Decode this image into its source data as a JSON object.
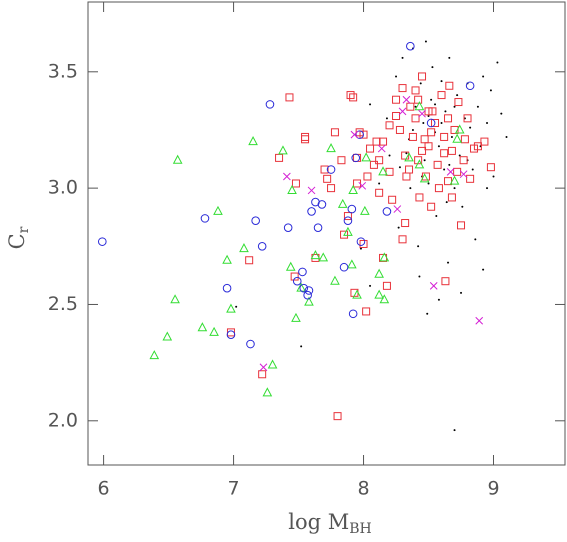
{
  "chart_data": {
    "type": "scatter",
    "xlabel": {
      "text": "log M",
      "sub": "BH"
    },
    "ylabel": {
      "text": "C",
      "sub": "r"
    },
    "xlim": [
      5.88,
      9.55
    ],
    "ylim": [
      1.81,
      3.8
    ],
    "xticks": [
      6,
      7,
      8,
      9
    ],
    "yticks": [
      {
        "value": 2.0,
        "label": "2.0"
      },
      {
        "value": 2.5,
        "label": "2.5"
      },
      {
        "value": 3.0,
        "label": "3.0"
      },
      {
        "value": 3.5,
        "label": "3.5"
      }
    ],
    "series": [
      {
        "marker": "dot",
        "color": "#000000",
        "x": [
          7.02,
          7.52,
          7.98,
          8.05,
          8.12,
          8.2,
          8.25,
          8.27,
          8.3,
          8.33,
          8.35,
          8.38,
          8.4,
          8.42,
          8.44,
          8.46,
          8.47,
          8.48,
          8.5,
          8.52,
          8.53,
          8.55,
          8.56,
          8.58,
          8.6,
          8.62,
          8.63,
          8.65,
          8.66,
          8.68,
          8.7,
          8.7,
          8.72,
          8.74,
          8.76,
          8.78,
          8.8,
          8.82,
          8.84,
          8.86,
          8.88,
          8.9,
          8.92,
          8.95,
          8.98,
          9.0,
          9.03,
          9.06,
          9.1,
          8.45,
          8.55,
          8.36,
          8.28,
          8.18,
          8.64,
          8.75,
          8.58,
          8.43,
          8.49,
          8.92,
          8.05,
          8.6,
          8.7,
          8.38,
          8.5,
          8.8,
          8.95,
          8.66
        ],
        "values": [
          2.49,
          2.32,
          2.74,
          2.58,
          3.02,
          3.14,
          3.48,
          2.83,
          3.56,
          3.15,
          3.21,
          3.6,
          3.35,
          2.75,
          3.45,
          3.28,
          3.12,
          3.63,
          3.02,
          3.38,
          3.52,
          3.24,
          2.88,
          3.18,
          3.46,
          3.08,
          3.33,
          2.68,
          3.56,
          3.22,
          1.96,
          3.0,
          3.4,
          3.14,
          2.92,
          3.3,
          3.45,
          3.26,
          3.08,
          2.78,
          3.35,
          3.18,
          2.65,
          3.28,
          3.42,
          3.05,
          3.54,
          3.32,
          3.22,
          3.05,
          3.36,
          3.0,
          3.09,
          3.3,
          2.94,
          2.55,
          2.52,
          2.62,
          2.46,
          3.48,
          3.36,
          3.28,
          3.35,
          3.25,
          3.31,
          3.12,
          3.0,
          3.1
        ]
      },
      {
        "marker": "square",
        "color": "#e8323a",
        "x": [
          6.98,
          7.12,
          7.22,
          7.35,
          7.43,
          7.48,
          7.55,
          7.55,
          7.47,
          7.63,
          7.7,
          7.75,
          7.78,
          7.8,
          7.83,
          7.88,
          7.85,
          7.9,
          7.92,
          7.93,
          7.95,
          7.95,
          7.97,
          8.0,
          8.0,
          8.02,
          8.03,
          8.05,
          8.08,
          8.1,
          8.12,
          8.15,
          8.15,
          8.18,
          8.2,
          8.22,
          8.25,
          8.28,
          8.3,
          8.3,
          8.32,
          8.32,
          8.35,
          8.36,
          8.38,
          8.4,
          8.42,
          8.42,
          8.43,
          8.45,
          8.47,
          8.48,
          8.5,
          8.5,
          8.52,
          8.53,
          8.55,
          8.57,
          8.58,
          8.6,
          8.62,
          8.63,
          8.65,
          8.65,
          8.66,
          8.68,
          8.7,
          8.72,
          8.73,
          8.75,
          8.77,
          8.78,
          8.8,
          8.82,
          8.85,
          8.88,
          8.93,
          8.98,
          8.4,
          8.25,
          8.62,
          8.33,
          8.12,
          7.72,
          8.52,
          8.45,
          8.2,
          8.68
        ],
        "values": [
          2.38,
          2.69,
          2.2,
          3.13,
          3.39,
          3.02,
          3.22,
          3.21,
          2.62,
          2.7,
          3.08,
          3.0,
          3.24,
          2.02,
          3.12,
          2.88,
          2.8,
          3.4,
          3.39,
          2.55,
          3.13,
          3.02,
          3.24,
          3.23,
          2.76,
          2.47,
          3.05,
          3.17,
          3.1,
          3.2,
          3.12,
          3.2,
          2.7,
          2.58,
          3.07,
          2.95,
          3.31,
          3.25,
          3.43,
          2.78,
          3.14,
          2.85,
          3.08,
          3.35,
          3.22,
          3.3,
          3.38,
          3.12,
          2.96,
          3.48,
          3.21,
          3.05,
          3.33,
          3.18,
          2.92,
          3.33,
          3.28,
          3.1,
          3.0,
          3.4,
          3.22,
          2.6,
          3.3,
          3.03,
          3.44,
          3.16,
          3.25,
          3.07,
          3.37,
          2.84,
          3.12,
          3.21,
          3.3,
          3.04,
          3.17,
          3.18,
          3.2,
          3.09,
          3.42,
          3.38,
          3.15,
          3.05,
          2.98,
          3.04,
          3.24,
          3.16,
          3.27,
          2.96
        ]
      },
      {
        "marker": "triangle",
        "color": "#33dd33",
        "x": [
          6.57,
          6.39,
          6.49,
          6.55,
          6.76,
          6.85,
          6.88,
          6.95,
          6.98,
          7.08,
          7.15,
          7.26,
          7.3,
          7.38,
          7.44,
          7.45,
          7.48,
          7.52,
          7.58,
          7.63,
          7.69,
          7.75,
          7.78,
          7.84,
          7.88,
          7.91,
          7.92,
          7.95,
          8.01,
          8.12,
          8.12,
          8.16,
          8.02,
          8.15,
          8.16,
          8.35,
          8.43,
          8.47,
          8.43,
          8.7,
          8.72,
          8.74
        ],
        "values": [
          3.12,
          2.28,
          2.36,
          2.52,
          2.4,
          2.38,
          2.9,
          2.69,
          2.48,
          2.74,
          3.2,
          2.12,
          2.24,
          3.16,
          2.66,
          2.99,
          2.44,
          2.57,
          2.51,
          2.71,
          2.7,
          3.17,
          2.6,
          2.93,
          2.81,
          2.67,
          2.99,
          2.54,
          2.9,
          2.63,
          2.54,
          2.7,
          3.13,
          3.07,
          2.52,
          3.13,
          3.1,
          3.04,
          3.35,
          3.03,
          3.21,
          3.25
        ]
      },
      {
        "marker": "circle",
        "color": "#2a2ad8",
        "x": [
          5.99,
          6.78,
          6.95,
          6.98,
          7.13,
          7.17,
          7.22,
          7.28,
          7.42,
          7.53,
          7.6,
          7.63,
          7.65,
          7.58,
          7.54,
          7.49,
          7.57,
          7.68,
          7.75,
          7.85,
          7.88,
          7.92,
          7.91,
          7.94,
          7.97,
          7.98,
          8.18,
          8.36,
          8.52,
          8.82
        ],
        "values": [
          2.77,
          2.87,
          2.57,
          2.37,
          2.33,
          2.86,
          2.75,
          3.36,
          2.83,
          2.64,
          2.9,
          2.94,
          2.83,
          2.56,
          2.57,
          2.6,
          2.54,
          2.93,
          3.08,
          2.66,
          2.86,
          2.46,
          2.91,
          3.13,
          3.23,
          2.77,
          2.9,
          3.61,
          3.28,
          3.44
        ]
      },
      {
        "marker": "cross",
        "color": "#d41fd4",
        "x": [
          7.23,
          7.41,
          7.6,
          7.93,
          7.99,
          8.14,
          8.26,
          8.3,
          8.33,
          8.45,
          8.67,
          8.77,
          8.54,
          8.89
        ],
        "values": [
          2.23,
          3.05,
          2.99,
          3.23,
          3.01,
          3.17,
          2.91,
          3.33,
          3.38,
          3.32,
          3.07,
          3.06,
          2.58,
          2.43
        ]
      }
    ]
  }
}
